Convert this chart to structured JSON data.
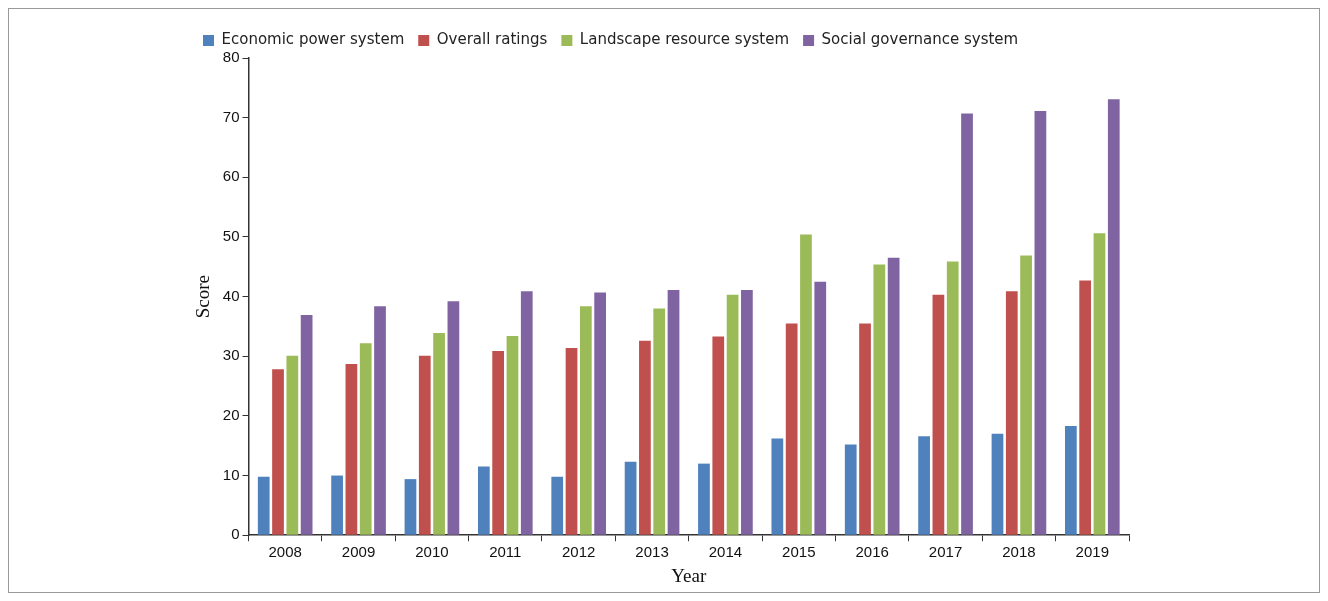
{
  "chart_data": {
    "type": "bar",
    "xlabel": "Year",
    "ylabel": "Score",
    "categories": [
      "2008",
      "2009",
      "2010",
      "2011",
      "2012",
      "2013",
      "2014",
      "2015",
      "2016",
      "2017",
      "2018",
      "2019"
    ],
    "series": [
      {
        "name": "Economic power system",
        "color": "#4f81bd",
        "values": [
          9.8,
          10,
          9.4,
          11.5,
          9.8,
          12.3,
          12,
          16.2,
          15.2,
          16.6,
          17,
          18.3
        ]
      },
      {
        "name": "Overall ratings",
        "color": "#c0504d",
        "values": [
          27.8,
          28.7,
          30.1,
          30.9,
          31.4,
          32.6,
          33.3,
          35.5,
          35.5,
          40.3,
          40.9,
          42.7
        ]
      },
      {
        "name": "Landscape resource system",
        "color": "#9bbb59",
        "values": [
          30.1,
          32.2,
          33.9,
          33.4,
          38.4,
          38,
          40.3,
          50.4,
          45.4,
          45.9,
          46.9,
          50.6
        ]
      },
      {
        "name": "Social governance system",
        "color": "#8064a2",
        "values": [
          36.9,
          38.4,
          39.2,
          40.9,
          40.7,
          41.1,
          41.1,
          42.5,
          46.5,
          70.7,
          71.1,
          73.1
        ]
      }
    ],
    "ylim": [
      0,
      80
    ],
    "yticks": [
      0,
      10,
      20,
      30,
      40,
      50,
      60,
      70,
      80
    ],
    "grid": false,
    "legend": "top left"
  }
}
